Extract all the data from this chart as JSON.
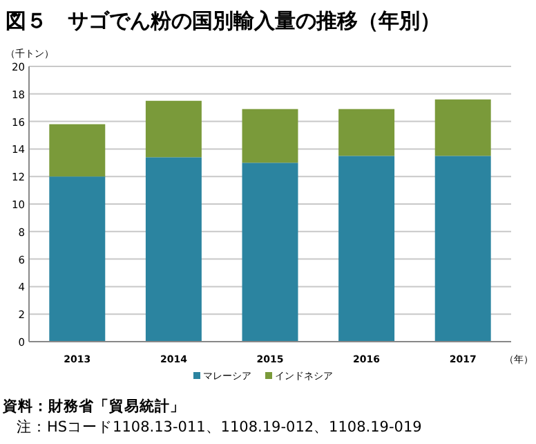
{
  "chart_data": {
    "type": "bar",
    "stacked": true,
    "title": "図５　サゴでん粉の国別輸入量の推移（年別）",
    "ylabel": "（千トン）",
    "xlabel": "（年）",
    "categories": [
      "2013",
      "2014",
      "2015",
      "2016",
      "2017"
    ],
    "series": [
      {
        "name": "マレーシア",
        "color": "#2b84a0",
        "values": [
          12.0,
          13.4,
          13.0,
          13.5,
          13.5
        ]
      },
      {
        "name": "インドネシア",
        "color": "#7a9a3a",
        "values": [
          3.8,
          4.1,
          3.9,
          3.4,
          4.1
        ]
      }
    ],
    "ylim": [
      0,
      20
    ],
    "yticks": [
      0,
      2,
      4,
      6,
      8,
      10,
      12,
      14,
      16,
      18,
      20
    ],
    "grid": "y",
    "legend": "bottom",
    "annotations": [
      "資料：財務省「貿易統計」",
      "注：HSコード1108.13-011、1108.19-012、1108.19-019"
    ]
  }
}
